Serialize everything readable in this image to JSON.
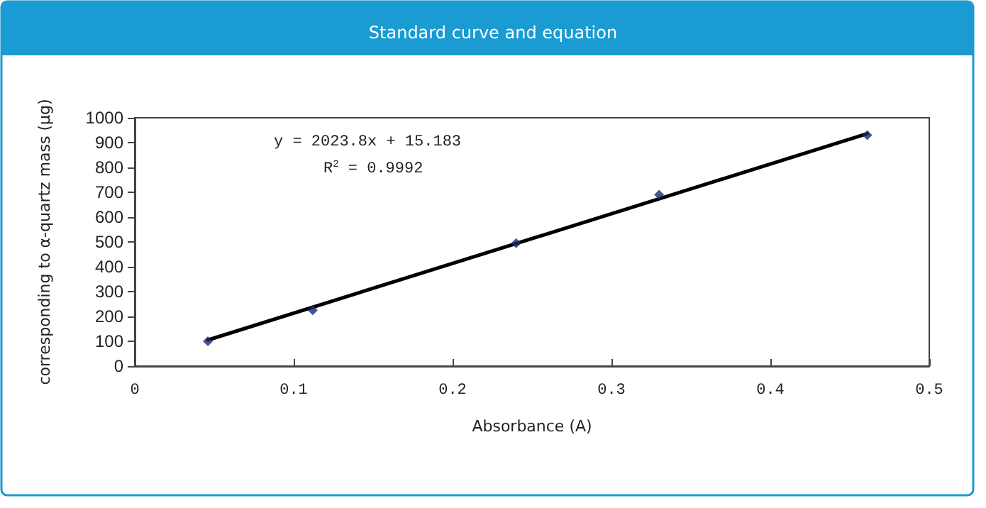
{
  "chart_data": {
    "type": "scatter",
    "title": "Standard curve and equation",
    "xlabel": "Absorbance (A)",
    "ylabel": "corresponding to α-quartz mass (μg)",
    "annotations": [
      "y = 2023.8x + 15.183",
      "R$^{2}$ = 0.9992"
    ],
    "series": [
      {
        "color": "#1f2a6b",
        "x": [
          0.046,
          0.112,
          0.24,
          0.33,
          0.461
        ],
        "values": [
          100,
          225,
          495,
          690,
          930
        ],
        "marker": "diamond"
      },
      {
        "type": "line",
        "color": "#000000",
        "x": [
          0.046,
          0.461
        ],
        "values": [
          105,
          936
        ],
        "marker": "none",
        "line_style": "solid"
      }
    ],
    "xlim": [
      0,
      0.5
    ],
    "xticks": [
      0,
      0.1,
      0.2,
      0.3,
      0.4,
      0.5
    ],
    "ylim": [
      0,
      1000
    ],
    "yticks": [
      0,
      100,
      200,
      300,
      400,
      500,
      600,
      700,
      800,
      900,
      1000
    ],
    "grid": false
  }
}
